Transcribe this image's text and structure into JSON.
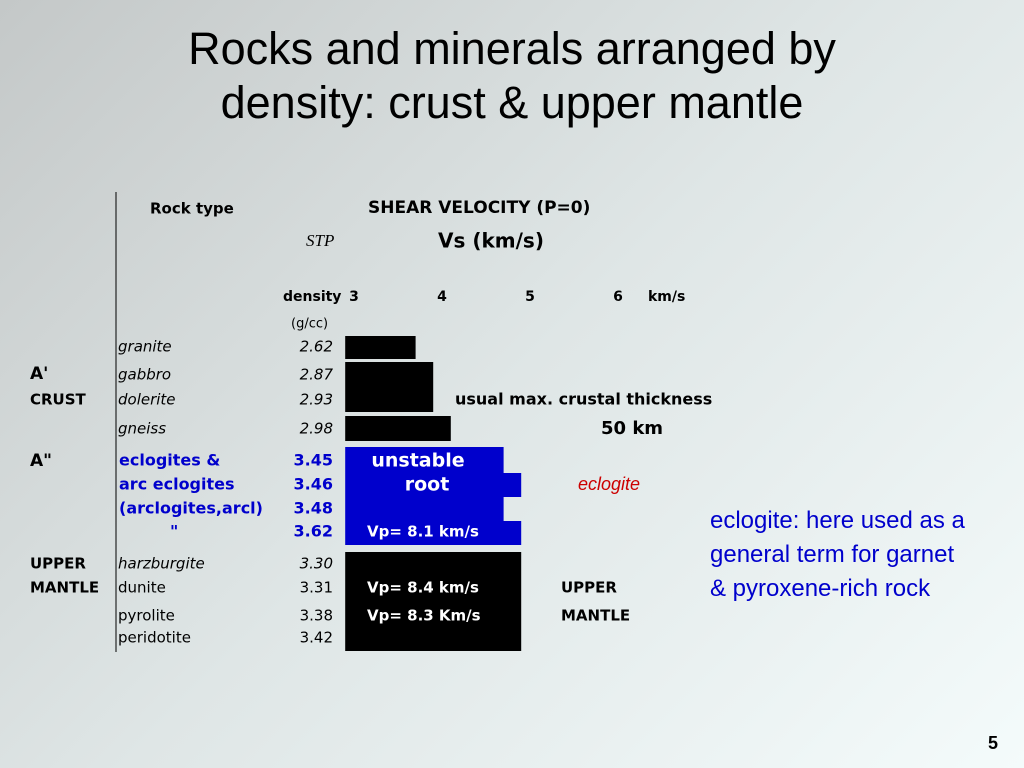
{
  "title": "Rocks and minerals arranged by density: crust & upper mantle",
  "header": {
    "rock_type": "Rock type",
    "shear_velocity": "SHEAR VELOCITY (P=0)",
    "stp": "STP",
    "vs": "Vs (km/s)",
    "density": "density",
    "density_unit": "(g/cc)",
    "unit": "km/s"
  },
  "scale": {
    "xlim": [
      2.9,
      6.5
    ],
    "xticks": [
      3,
      4,
      5,
      6
    ]
  },
  "side_labels": [
    "A'",
    "CRUST",
    "A\"",
    "UPPER",
    "MANTLE"
  ],
  "rows": [
    {
      "name": "granite",
      "density": "2.62",
      "vs": 3.7,
      "color": "#000000"
    },
    {
      "name": "gabbro",
      "density": "2.87",
      "vs": 3.9,
      "color": "#000000"
    },
    {
      "name": "dolerite",
      "density": "2.93",
      "vs": 3.9,
      "color": "#000000"
    },
    {
      "name": "gneiss",
      "density": "2.98",
      "vs": 4.1,
      "color": "#000000"
    },
    {
      "name": "eclogites &",
      "density": "3.45",
      "vs": 4.7,
      "color": "#0000cc"
    },
    {
      "name": "arc eclogites",
      "density": "3.46",
      "vs": 4.9,
      "color": "#0000cc"
    },
    {
      "name": "(arclogites,arcl)",
      "density": "3.48",
      "vs": 4.7,
      "color": "#0000cc"
    },
    {
      "name": "\"",
      "density": "3.62",
      "vs": 4.9,
      "color": "#0000cc"
    },
    {
      "name": "harzburgite",
      "density": "3.30",
      "vs": 4.9,
      "color": "#000000"
    },
    {
      "name": "dunite",
      "density": "3.31",
      "vs": 4.9,
      "color": "#000000"
    },
    {
      "name": "pyrolite",
      "density": "3.38",
      "vs": 4.9,
      "color": "#000000"
    },
    {
      "name": "peridotite",
      "density": "3.42",
      "vs": 4.9,
      "color": "#000000"
    }
  ],
  "bar_labels": [
    "unstable",
    "root",
    "Vp= 8.1 km/s",
    "Vp= 8.4 km/s",
    "Vp= 8.3 Km/s"
  ],
  "annotations": {
    "crustal_thickness": "usual max. crustal thickness",
    "thickness_value": "50 km",
    "eclogite": "eclogite",
    "upper": "UPPER",
    "mantle": "MANTLE"
  },
  "note": "eclogite: here used as a general term for garnet & pyroxene-rich rock",
  "page_number": "5"
}
